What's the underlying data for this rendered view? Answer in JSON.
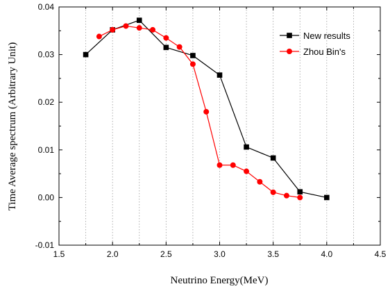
{
  "chart_data": {
    "type": "line",
    "xlabel": "Neutrino Energy(MeV)",
    "ylabel": "Time Average spectrum (Arbitrary Unit)",
    "xlim": [
      1.5,
      4.5
    ],
    "ylim": [
      -0.01,
      0.04
    ],
    "x_ticks": [
      "1.5",
      "2.0",
      "2.5",
      "3.0",
      "3.5",
      "4.0",
      "4.5"
    ],
    "y_ticks": [
      "-0.01",
      "0.00",
      "0.01",
      "0.02",
      "0.03",
      "0.04"
    ],
    "grid": "vertical dotted",
    "legend_position": "top-right",
    "series": [
      {
        "name": "New results",
        "color": "#000000",
        "marker": "square",
        "x": [
          1.75,
          2.0,
          2.25,
          2.5,
          2.75,
          3.0,
          3.25,
          3.5,
          3.75,
          4.0
        ],
        "y": [
          0.03,
          0.0352,
          0.0372,
          0.0315,
          0.0298,
          0.0257,
          0.0106,
          0.0083,
          0.0012,
          0.0
        ]
      },
      {
        "name": "Zhou Bin's",
        "color": "#ff0000",
        "marker": "circle",
        "x": [
          1.875,
          2.0,
          2.125,
          2.25,
          2.375,
          2.5,
          2.625,
          2.75,
          2.875,
          3.0,
          3.125,
          3.25,
          3.375,
          3.5,
          3.625,
          3.75
        ],
        "y": [
          0.0338,
          0.0352,
          0.036,
          0.0356,
          0.0352,
          0.0335,
          0.0316,
          0.028,
          0.018,
          0.0068,
          0.0068,
          0.0055,
          0.0033,
          0.0011,
          0.0004,
          0.0
        ]
      }
    ]
  }
}
